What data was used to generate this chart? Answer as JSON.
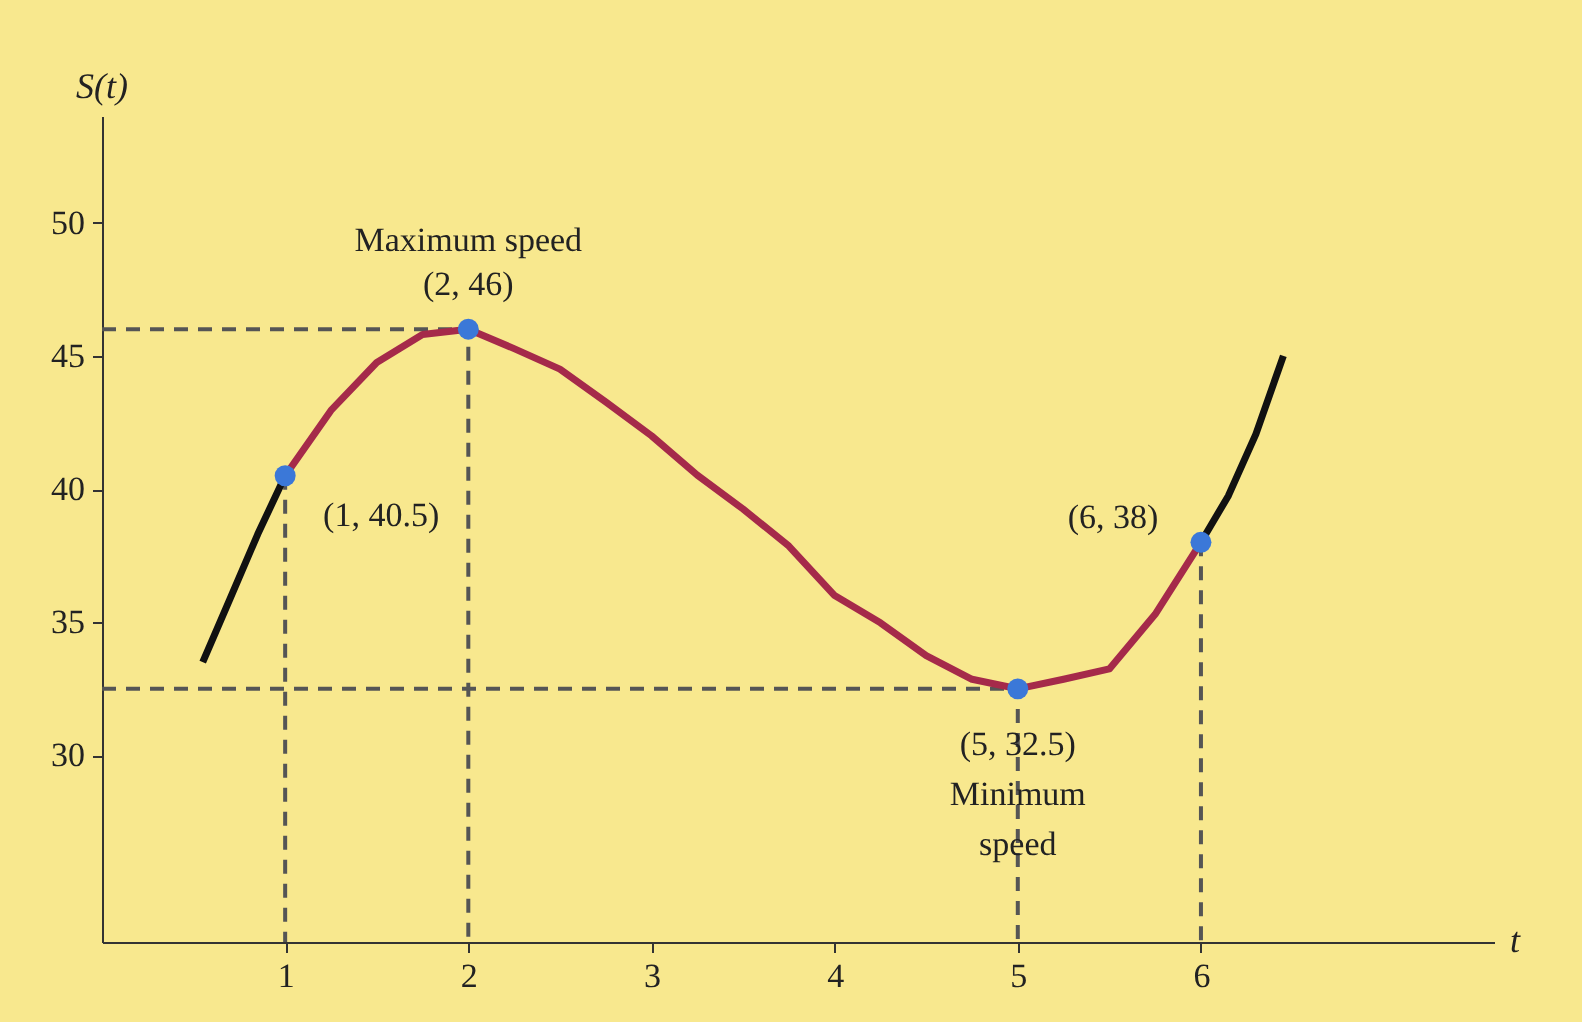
{
  "chart_data": {
    "type": "line",
    "xlabel": "t",
    "ylabel": "S(t)",
    "xlim": [
      0,
      7.6
    ],
    "ylim": [
      23,
      54
    ],
    "xticks": [
      1,
      2,
      3,
      4,
      5,
      6
    ],
    "yticks": [
      30,
      35,
      40,
      45,
      50
    ],
    "grid": false,
    "series": [
      {
        "line_style": "dashed",
        "color": "#555555",
        "x": [
          0,
          2,
          2
        ],
        "values": [
          46,
          46,
          23
        ]
      },
      {
        "line_style": "dashed",
        "color": "#555555",
        "x": [
          0,
          5,
          5
        ],
        "values": [
          32.5,
          32.5,
          23
        ]
      },
      {
        "line_style": "dashed",
        "color": "#555555",
        "x": [
          1,
          1
        ],
        "values": [
          40.5,
          23
        ]
      },
      {
        "line_style": "dashed",
        "color": "#555555",
        "x": [
          6,
          6
        ],
        "values": [
          38,
          23
        ]
      },
      {
        "line_style": "solid",
        "color": "#111111",
        "x": [
          0.55,
          0.7,
          0.85,
          1
        ],
        "values": [
          33.5,
          35.9,
          38.3,
          40.5
        ]
      },
      {
        "line_style": "solid",
        "color": "#a52a4a",
        "x": [
          1,
          1.25,
          1.5,
          1.75,
          2,
          2.25,
          2.5,
          2.75,
          3,
          3.25,
          3.5,
          3.75,
          4,
          4.25,
          4.5,
          4.75,
          5,
          5.25,
          5.5,
          5.75,
          6
        ],
        "values": [
          40.5,
          42.95,
          44.75,
          45.8,
          46,
          45.27,
          44.5,
          43.27,
          42,
          40.52,
          39.25,
          37.86,
          36,
          34.98,
          33.75,
          32.86,
          32.5,
          32.86,
          33.25,
          35.3,
          38
        ]
      },
      {
        "line_style": "solid",
        "color": "#111111",
        "x": [
          6,
          6.15,
          6.3,
          6.45
        ],
        "values": [
          38,
          39.75,
          42.06,
          45.0
        ]
      },
      {
        "type": "scatter",
        "marker": "circle",
        "color": "#3b78d8",
        "x": [
          1,
          2,
          5,
          6
        ],
        "values": [
          40.5,
          46,
          32.5,
          38
        ]
      }
    ],
    "annotations": [
      {
        "text": "Maximum speed",
        "x": 2,
        "y": 46
      },
      {
        "text": "(2, 46)",
        "x": 2,
        "y": 46
      },
      {
        "text": "(1, 40.5)",
        "x": 1,
        "y": 40.5
      },
      {
        "text": "(6, 38)",
        "x": 6,
        "y": 38
      },
      {
        "text": "(5, 32.5)",
        "x": 5,
        "y": 32.5
      },
      "Minimum speed"
    ]
  }
}
